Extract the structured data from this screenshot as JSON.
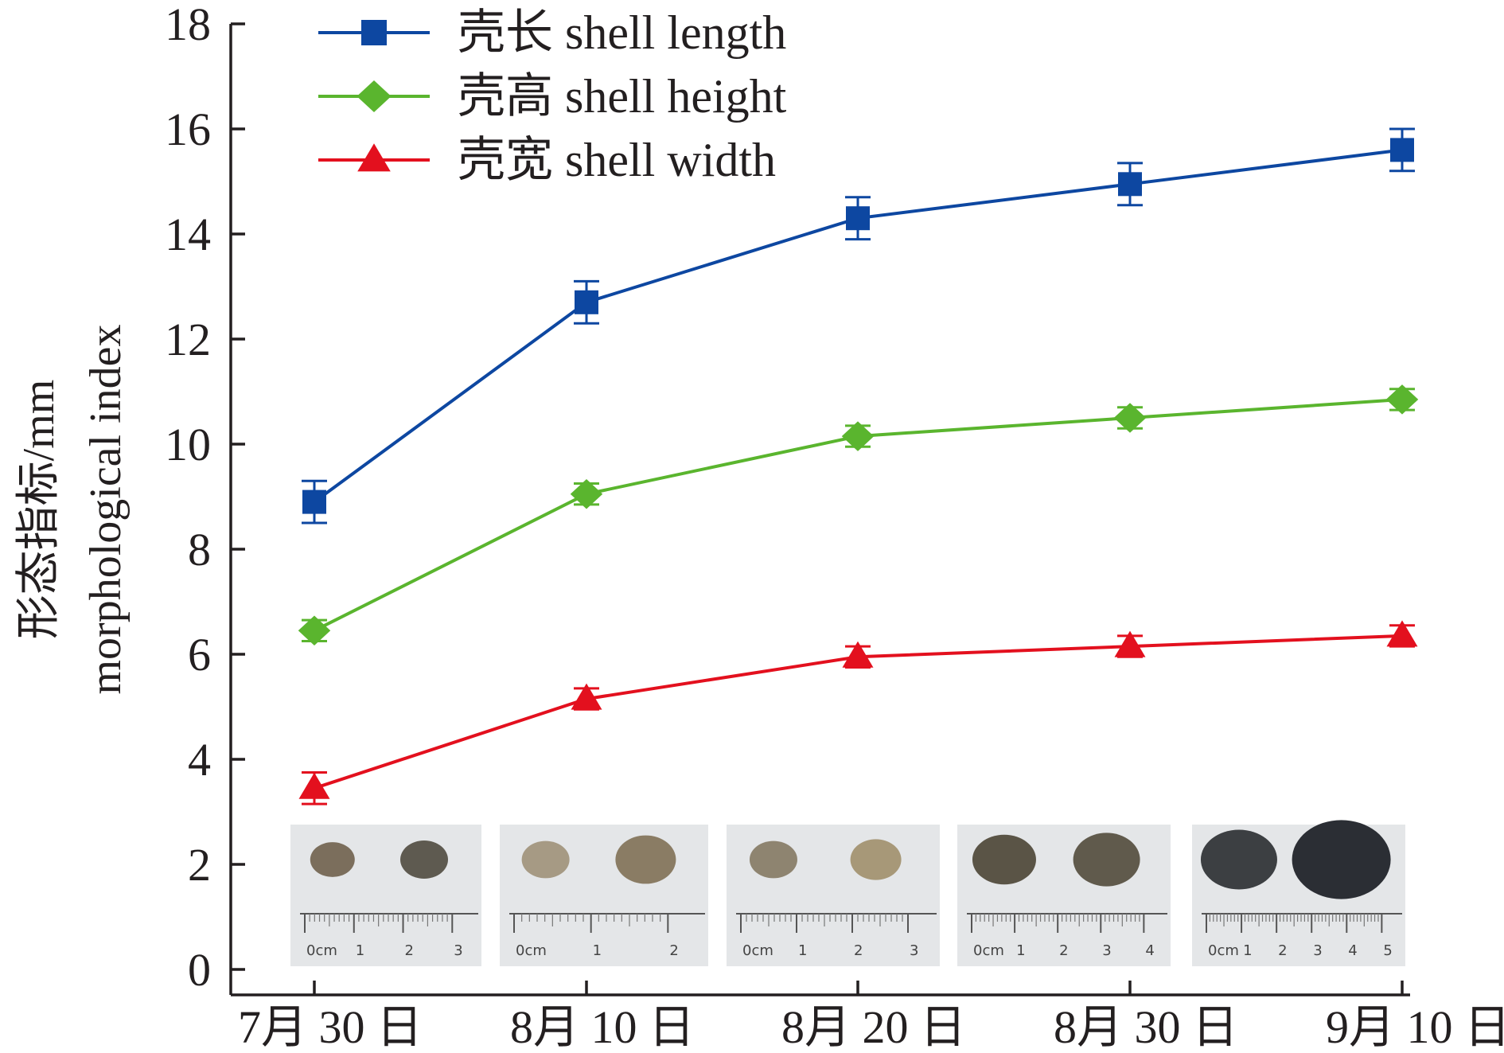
{
  "chart_data": {
    "type": "line",
    "categories": [
      "7月 30 日",
      "8月 10 日",
      "8月 20 日",
      "8月 30 日",
      "9月 10 日"
    ],
    "ylabel_cn": "形态指标/mm",
    "ylabel_en": "morphological index",
    "ylim": [
      0,
      18
    ],
    "yticks": [
      "0",
      "2",
      "4",
      "6",
      "8",
      "10",
      "12",
      "14",
      "16",
      "18"
    ],
    "grid": false,
    "legend_position": "top-left",
    "series": [
      {
        "name": "壳长 shell length",
        "marker": "square",
        "color": "#0d47a1",
        "values": [
          8.9,
          12.7,
          14.3,
          14.95,
          15.6
        ],
        "errors": [
          0.4,
          0.4,
          0.4,
          0.4,
          0.4
        ]
      },
      {
        "name": "壳高 shell height",
        "marker": "diamond",
        "color": "#5ab52e",
        "values": [
          6.45,
          9.05,
          10.15,
          10.5,
          10.85
        ],
        "errors": [
          0.2,
          0.2,
          0.2,
          0.2,
          0.2
        ]
      },
      {
        "name": "壳宽 shell width",
        "marker": "triangle",
        "color": "#e3101e",
        "values": [
          3.45,
          5.15,
          5.95,
          6.15,
          6.35
        ],
        "errors": [
          0.3,
          0.2,
          0.2,
          0.2,
          0.2
        ]
      }
    ],
    "photo_scales": [
      [
        "0cm",
        "1",
        "2",
        "3"
      ],
      [
        "0cm",
        "1",
        "2"
      ],
      [
        "0cm",
        "1",
        "2",
        "3"
      ],
      [
        "0cm",
        "1",
        "2",
        "3",
        "4"
      ],
      [
        "0cm",
        "1",
        "2",
        "3",
        "4",
        "5"
      ]
    ]
  }
}
